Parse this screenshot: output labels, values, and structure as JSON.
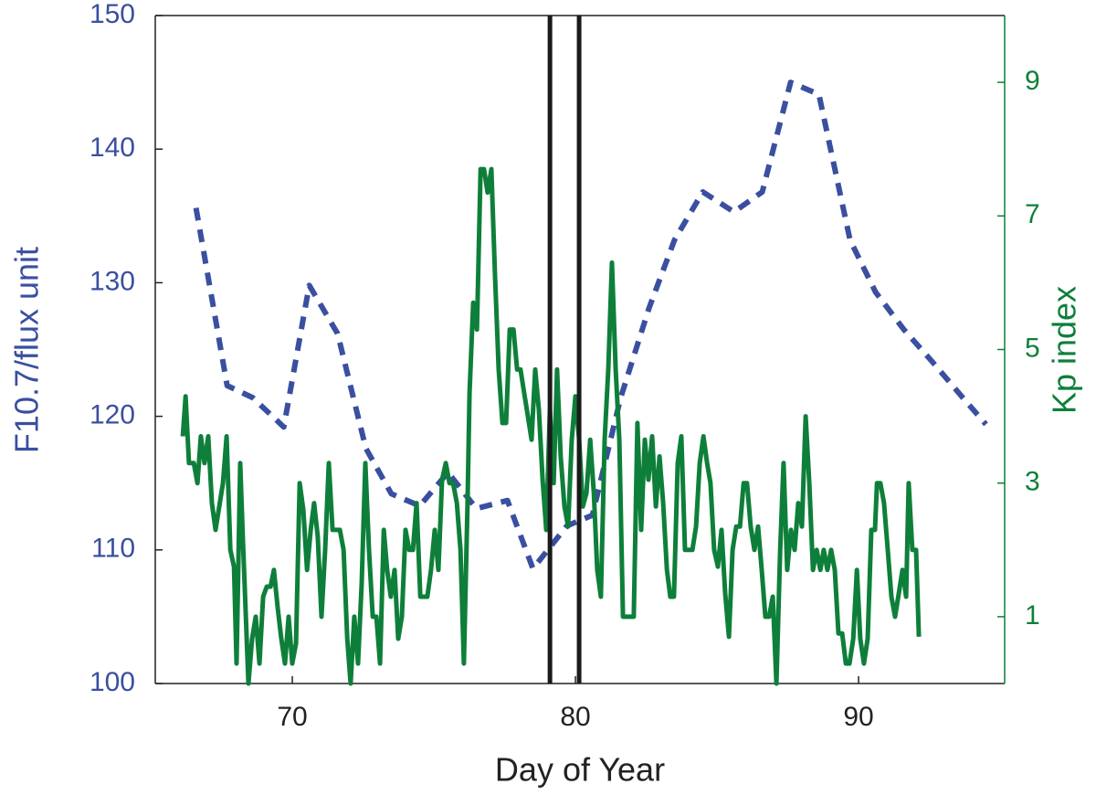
{
  "chart_data": {
    "type": "line",
    "xlabel": "Day of Year",
    "ylabel": "F10.7/flux unit",
    "y2label": "Kp index",
    "xlim": [
      65.16,
      95.16
    ],
    "xticks": [
      70,
      80,
      90
    ],
    "ylim": [
      100,
      150
    ],
    "yticks": [
      100,
      110,
      120,
      130,
      140,
      150
    ],
    "y2lim": [
      0,
      10
    ],
    "y2ticks": [
      1,
      3,
      5,
      7,
      9
    ],
    "ycolor": "#3a4fa0",
    "y2color": "#0e7f3a",
    "vlines": [
      79.1,
      80.13
    ],
    "vline_color": "#1a1a1a",
    "series": [
      {
        "color": "#3a4fa0",
        "line_style": "dashed",
        "axis": "y",
        "x": [
          66.6,
          67.7,
          68.6,
          69.7,
          70.6,
          71.6,
          72.6,
          73.5,
          74.5,
          75.5,
          76.5,
          77.6,
          78.5,
          79.7,
          80.6,
          81.6,
          82.6,
          83.5,
          84.5,
          85.6,
          86.6,
          87.6,
          88.6,
          89.7,
          90.6,
          91.6,
          92.6,
          93.6,
          94.5
        ],
        "values": [
          135.6,
          122.3,
          121.4,
          119.2,
          129.8,
          126.2,
          117.6,
          114.2,
          113.3,
          115.8,
          113.1,
          113.7,
          108.6,
          111.8,
          112.6,
          121.4,
          128.1,
          133.2,
          136.8,
          135.3,
          136.8,
          145,
          144.1,
          133.2,
          129.3,
          126.5,
          124.1,
          121.6,
          119.4
        ]
      },
      {
        "color": "#0e7f3a",
        "line_style": "solid",
        "axis": "y2",
        "x": [
          66.13,
          66.23,
          66.35,
          66.52,
          66.65,
          66.77,
          66.9,
          67.03,
          67.16,
          67.29,
          67.55,
          67.68,
          67.81,
          67.94,
          68.03,
          68.16,
          68.26,
          68.45,
          68.58,
          68.71,
          68.84,
          68.97,
          69.1,
          69.23,
          69.35,
          69.48,
          69.61,
          69.74,
          69.87,
          70,
          70.13,
          70.26,
          70.39,
          70.52,
          70.65,
          70.77,
          70.9,
          71.03,
          71.16,
          71.29,
          71.42,
          71.55,
          71.68,
          71.81,
          71.94,
          72.06,
          72.19,
          72.32,
          72.45,
          72.58,
          72.71,
          72.84,
          72.97,
          73.1,
          73.23,
          73.35,
          73.48,
          73.61,
          73.74,
          73.87,
          74,
          74.13,
          74.26,
          74.39,
          74.52,
          74.65,
          74.77,
          74.9,
          75.03,
          75.16,
          75.29,
          75.42,
          75.55,
          75.68,
          75.81,
          75.94,
          76.06,
          76.19,
          76.26,
          76.39,
          76.52,
          76.65,
          76.77,
          76.9,
          77.03,
          77.16,
          77.29,
          77.42,
          77.55,
          77.68,
          77.81,
          77.94,
          78.06,
          78.19,
          78.32,
          78.45,
          78.58,
          78.71,
          78.84,
          78.97,
          79.1,
          79.23,
          79.35,
          79.48,
          79.61,
          79.74,
          79.87,
          80,
          80.13,
          80.26,
          80.39,
          80.52,
          80.65,
          80.77,
          80.9,
          81.03,
          81.16,
          81.29,
          81.42,
          81.55,
          81.68,
          81.81,
          81.94,
          82.06,
          82.19,
          82.32,
          82.45,
          82.58,
          82.71,
          82.84,
          82.97,
          83.1,
          83.23,
          83.35,
          83.48,
          83.61,
          83.74,
          83.87,
          84,
          84.13,
          84.26,
          84.39,
          84.52,
          84.65,
          84.77,
          84.9,
          85.03,
          85.16,
          85.29,
          85.42,
          85.55,
          85.68,
          85.81,
          85.94,
          86.06,
          86.19,
          86.32,
          86.45,
          86.58,
          86.71,
          86.84,
          86.97,
          87.1,
          87.23,
          87.35,
          87.48,
          87.61,
          87.74,
          87.87,
          88,
          88.13,
          88.26,
          88.39,
          88.52,
          88.65,
          88.77,
          88.9,
          89.03,
          89.16,
          89.29,
          89.42,
          89.55,
          89.68,
          89.81,
          89.94,
          90.06,
          90.19,
          90.32,
          90.45,
          90.58,
          90.65,
          90.77,
          90.9,
          91.03,
          91.16,
          91.29,
          91.42,
          91.55,
          91.68,
          91.77,
          91.9,
          92.03,
          92.13
        ],
        "values": [
          3.7,
          4.3,
          3.3,
          3.3,
          3.0,
          3.7,
          3.3,
          3.7,
          2.7,
          2.3,
          3.0,
          3.7,
          2.0,
          1.75,
          0.3,
          3.3,
          2.1,
          0,
          0.67,
          1.0,
          0.3,
          1.3,
          1.45,
          1.45,
          1.7,
          1.15,
          0.67,
          0.3,
          1.0,
          0.3,
          0.6,
          3.0,
          2.6,
          1.7,
          2.3,
          2.7,
          2.2,
          1.0,
          2.0,
          3.3,
          2.3,
          2.3,
          2.3,
          2.0,
          0.67,
          0,
          1.0,
          0.3,
          1.5,
          3.3,
          2.0,
          1.0,
          1.0,
          0.3,
          2.3,
          1.7,
          1.3,
          1.7,
          0.67,
          1.0,
          2.3,
          2.0,
          2.0,
          2.7,
          1.3,
          1.3,
          1.3,
          1.7,
          2.3,
          1.7,
          3.05,
          3.3,
          3.0,
          3.0,
          2.7,
          2.0,
          0.3,
          2.7,
          4.35,
          5.7,
          5.3,
          7.7,
          7.7,
          7.35,
          7.7,
          6.1,
          4.7,
          3.9,
          3.9,
          5.3,
          5.3,
          4.7,
          4.7,
          4.35,
          4.0,
          3.65,
          4.7,
          4.1,
          3.05,
          2.3,
          4.1,
          3.0,
          4.7,
          3.4,
          2.65,
          2.35,
          3.65,
          4.3,
          3.65,
          2.65,
          2.85,
          3.65,
          2.85,
          1.7,
          1.3,
          3.65,
          4.7,
          6.3,
          4.7,
          3.65,
          1.0,
          1.0,
          1.0,
          1.0,
          3.9,
          2.3,
          3.65,
          3.05,
          3.7,
          2.65,
          3.4,
          2.7,
          1.7,
          1.3,
          1.3,
          3.3,
          3.7,
          2.0,
          2.0,
          2.0,
          2.35,
          3.3,
          3.7,
          3.3,
          3.0,
          2.0,
          1.75,
          2.3,
          1.35,
          0.7,
          2.0,
          2.35,
          2.35,
          3.0,
          3.0,
          2.35,
          2.0,
          2.35,
          1.7,
          1.0,
          1.0,
          1.3,
          0,
          2.0,
          3.3,
          1.7,
          2.3,
          2.0,
          2.7,
          2.35,
          4.0,
          3.0,
          1.7,
          2.0,
          1.7,
          2.0,
          1.7,
          2.0,
          1.7,
          0.75,
          0.75,
          0.3,
          0.3,
          0.67,
          1.7,
          0.67,
          0.3,
          0.67,
          2.3,
          2.3,
          3.0,
          3.0,
          2.7,
          2.0,
          1.3,
          1.0,
          1.35,
          1.7,
          1.3,
          3.0,
          2.0,
          2.0,
          0.7
        ]
      }
    ]
  }
}
